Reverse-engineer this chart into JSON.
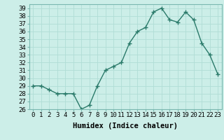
{
  "x": [
    0,
    1,
    2,
    3,
    4,
    5,
    6,
    7,
    8,
    9,
    10,
    11,
    12,
    13,
    14,
    15,
    16,
    17,
    18,
    19,
    20,
    21,
    22,
    23
  ],
  "y": [
    29,
    29,
    28.5,
    28,
    28,
    28,
    26,
    26.5,
    29,
    31,
    31.5,
    32,
    34.5,
    36,
    36.5,
    38.5,
    39,
    37.5,
    37.2,
    38.5,
    37.5,
    34.5,
    33,
    30.5
  ],
  "line_color": "#2a7a6a",
  "marker": "+",
  "marker_size": 4,
  "linewidth": 1.0,
  "xlabel": "Humidex (Indice chaleur)",
  "xlim": [
    -0.5,
    23.5
  ],
  "ylim": [
    26,
    39.5
  ],
  "yticks": [
    26,
    27,
    28,
    29,
    30,
    31,
    32,
    33,
    34,
    35,
    36,
    37,
    38,
    39
  ],
  "xtick_labels": [
    "0",
    "1",
    "2",
    "3",
    "4",
    "5",
    "6",
    "7",
    "8",
    "9",
    "10",
    "11",
    "12",
    "13",
    "14",
    "15",
    "16",
    "17",
    "18",
    "19",
    "20",
    "21",
    "22",
    "23"
  ],
  "bg_color": "#cceee8",
  "grid_color": "#b0ddd6",
  "tick_label_fontsize": 6.5,
  "xlabel_fontsize": 7.5
}
